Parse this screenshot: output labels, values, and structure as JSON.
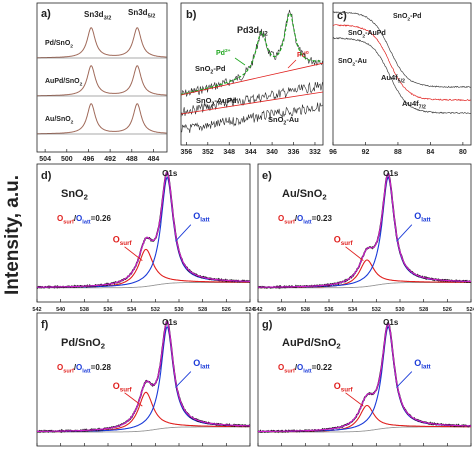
{
  "ylabel": "Intensity, a.u.",
  "colors": {
    "red": "#e0201e",
    "blue": "#1a3ad8",
    "magenta": "#cc1fcc",
    "green": "#1fa61f",
    "black": "#222222",
    "gray": "#9a9a9a",
    "brown": "#a06a5a"
  },
  "panels": {
    "a": {
      "letter": "a)",
      "peak1_label": "Sn3d",
      "peak1_sub": "3/2",
      "peak2_label": "Sn3d",
      "peak2_sub": "5/2",
      "traces": [
        "Pd/SnO",
        "AuPd/SnO",
        "Au/SnO"
      ],
      "trace_sub": "2",
      "xticks": [
        "504",
        "500",
        "496",
        "492",
        "488",
        "484"
      ],
      "xlim": [
        505.5,
        481.5
      ]
    },
    "b": {
      "letter": "b)",
      "peak_label": "Pd3d",
      "peak_sub": "5/2",
      "pd2_label": "Pd",
      "pd2_sup": "2+",
      "pd0_label": "Pd",
      "pd0_sup": "0",
      "traces": [
        "SnO",
        "SnO",
        "SnO"
      ],
      "trace_suffixes": [
        "-Pd",
        "-AuPd",
        "-Au"
      ],
      "trace_sub": "2",
      "xticks": [
        "356",
        "352",
        "348",
        "344",
        "340",
        "336",
        "332"
      ],
      "xlim": [
        357,
        330.5
      ]
    },
    "c": {
      "letter": "c)",
      "traces": [
        "SnO",
        "SnO",
        "SnO"
      ],
      "trace_suffixes": [
        "-Pd",
        "-AuPd",
        "-Au"
      ],
      "trace_sub": "2",
      "au1_label": "Au4f",
      "au1_sub": "5/2",
      "au2_label": "Au4f",
      "au2_sub": "7/2",
      "xticks": [
        "96",
        "92",
        "88",
        "84",
        "80"
      ],
      "xlim": [
        96,
        79
      ]
    },
    "o1s": [
      {
        "letter": "d)",
        "sample": "SnO",
        "sample_sub": "2",
        "ratio": "=0.26"
      },
      {
        "letter": "e)",
        "sample": "Au/SnO",
        "sample_sub": "2",
        "ratio": "=0.23"
      },
      {
        "letter": "f)",
        "sample": "Pd/SnO",
        "sample_sub": "2",
        "ratio": "=0.28"
      },
      {
        "letter": "g)",
        "sample": "AuPd/SnO",
        "sample_sub": "2",
        "ratio": "=0.22"
      }
    ],
    "o1s_common": {
      "peak_label": "O1s",
      "osurf_label": "O",
      "osurf_sub": "surf",
      "olatt_label": "O",
      "olatt_sub": "latt",
      "slash": "/",
      "xticks": [
        "542",
        "540",
        "538",
        "536",
        "534",
        "532",
        "530",
        "528",
        "526",
        "524"
      ],
      "xlim": [
        542,
        524
      ]
    }
  },
  "chart_data": [
    {
      "type": "line",
      "panel": "a",
      "title": "",
      "x_label": "",
      "y_label": "Intensity, a.u.",
      "xlim": [
        505.5,
        481.5
      ],
      "x_reversed": true,
      "series": [
        {
          "name": "Pd/SnO2",
          "peaks_eV": [
            495.5,
            487.0
          ],
          "intensity": [
            1,
            1
          ]
        },
        {
          "name": "AuPd/SnO2",
          "peaks_eV": [
            495.5,
            487.0
          ],
          "intensity": [
            1,
            1
          ]
        },
        {
          "name": "Au/SnO2",
          "peaks_eV": [
            495.5,
            487.0
          ],
          "intensity": [
            1,
            1
          ]
        }
      ],
      "peak_annotations": [
        "Sn3d3/2",
        "Sn3d5/2"
      ]
    },
    {
      "type": "line",
      "panel": "b",
      "title": "",
      "xlim": [
        357,
        330.5
      ],
      "x_reversed": true,
      "series": [
        {
          "name": "SnO2-Pd",
          "peaks_eV": [
            342.0,
            336.7
          ]
        },
        {
          "name": "SnO2-AuPd"
        },
        {
          "name": "SnO2-Au"
        }
      ],
      "peak_annotations": [
        "Pd3d5/2",
        "Pd2+",
        "Pd0"
      ]
    },
    {
      "type": "line",
      "panel": "c",
      "title": "",
      "xlim": [
        96,
        79
      ],
      "x_reversed": true,
      "series": [
        {
          "name": "SnO2-Pd"
        },
        {
          "name": "SnO2-AuPd"
        },
        {
          "name": "SnO2-Au"
        }
      ],
      "peak_annotations": [
        "Au4f5/2",
        "Au4f7/2"
      ]
    },
    {
      "type": "line",
      "panel": "d",
      "sample": "SnO2",
      "xlim": [
        542,
        524
      ],
      "x_reversed": true,
      "components": [
        {
          "name": "O_surf",
          "center_eV": 532.8,
          "height": 0.35
        },
        {
          "name": "O_latt",
          "center_eV": 531.0,
          "height": 1.0
        }
      ],
      "ratio_O_surf_O_latt": 0.26
    },
    {
      "type": "line",
      "panel": "e",
      "sample": "Au/SnO2",
      "xlim": [
        542,
        524
      ],
      "x_reversed": true,
      "components": [
        {
          "name": "O_surf",
          "center_eV": 532.8,
          "height": 0.25
        },
        {
          "name": "O_latt",
          "center_eV": 531.0,
          "height": 1.0
        }
      ],
      "ratio_O_surf_O_latt": 0.23
    },
    {
      "type": "line",
      "panel": "f",
      "sample": "Pd/SnO2",
      "xlim": [
        542,
        524
      ],
      "x_reversed": true,
      "components": [
        {
          "name": "O_surf",
          "center_eV": 532.8,
          "height": 0.38
        },
        {
          "name": "O_latt",
          "center_eV": 531.0,
          "height": 1.0
        }
      ],
      "ratio_O_surf_O_latt": 0.28
    },
    {
      "type": "line",
      "panel": "g",
      "sample": "AuPd/SnO2",
      "xlim": [
        542,
        524
      ],
      "x_reversed": true,
      "components": [
        {
          "name": "O_surf",
          "center_eV": 532.8,
          "height": 0.25
        },
        {
          "name": "O_latt",
          "center_eV": 531.0,
          "height": 1.0
        }
      ],
      "ratio_O_surf_O_latt": 0.22
    }
  ]
}
